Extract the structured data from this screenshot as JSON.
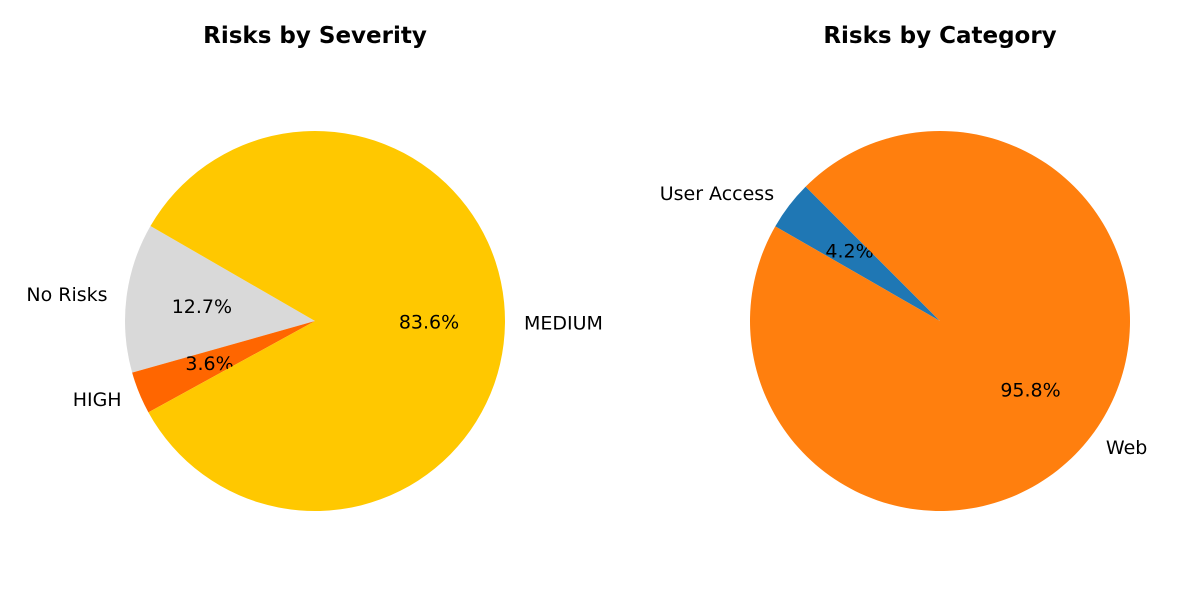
{
  "chart_data": [
    {
      "type": "pie",
      "title": "Risks by Severity",
      "start_angle_deg": 150,
      "direction": "counterclockwise",
      "slices": [
        {
          "label": "No Risks",
          "value": 12.7,
          "pct_label": "12.7%",
          "color": "#d9d9d9"
        },
        {
          "label": "HIGH",
          "value": 3.6,
          "pct_label": "3.6%",
          "color": "#ff6600"
        },
        {
          "label": "MEDIUM",
          "value": 83.6,
          "pct_label": "83.6%",
          "color": "#ffc800"
        }
      ]
    },
    {
      "type": "pie",
      "title": "Risks by Category",
      "start_angle_deg": 135,
      "direction": "counterclockwise",
      "slices": [
        {
          "label": "User Access",
          "value": 4.2,
          "pct_label": "4.2%",
          "color": "#1f77b4"
        },
        {
          "label": "Web",
          "value": 95.8,
          "pct_label": "95.8%",
          "color": "#ff7f0e"
        }
      ]
    }
  ]
}
